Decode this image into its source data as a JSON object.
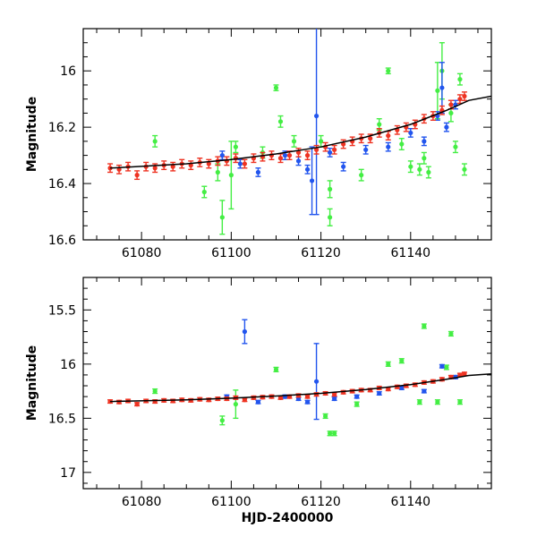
{
  "chart_data": [
    {
      "type": "scatter",
      "panel": "top",
      "xlabel": "",
      "ylabel": "Magnitude",
      "xlim": [
        61067,
        61158
      ],
      "ylim": [
        16.6,
        15.85
      ],
      "y_inverted": true,
      "xticks": [
        61080,
        61100,
        61120,
        61140
      ],
      "xtick_labels": [
        "61080",
        "61100",
        "61120",
        "61140"
      ],
      "yticks": [
        16,
        16.2,
        16.4,
        16.6
      ],
      "ytick_labels": [
        "16",
        "16.2",
        "16.4",
        "16.6"
      ],
      "fit_curve": {
        "color": "#000000",
        "x": [
          61073,
          61090,
          61100,
          61110,
          61120,
          61130,
          61140,
          61148,
          61153,
          61158
        ],
        "y": [
          16.345,
          16.33,
          16.315,
          16.295,
          16.27,
          16.235,
          16.19,
          16.14,
          16.105,
          16.09
        ]
      },
      "series": [
        {
          "name": "green",
          "color": "#44ee44",
          "x": [
            61083,
            61094,
            61097,
            61098,
            61100,
            61101,
            61107,
            61110,
            61111,
            61114,
            61120,
            61122,
            61122,
            61129,
            61133,
            61135,
            61138,
            61140,
            61142,
            61143,
            61144,
            61146,
            61147,
            61149,
            61150,
            61151,
            61152
          ],
          "y": [
            16.25,
            16.43,
            16.36,
            16.52,
            16.37,
            16.27,
            16.29,
            16.06,
            16.18,
            16.25,
            16.25,
            16.42,
            16.52,
            16.37,
            16.19,
            16.0,
            16.26,
            16.34,
            16.35,
            16.31,
            16.36,
            16.07,
            16.0,
            16.15,
            16.27,
            16.03,
            16.35
          ],
          "err": [
            0.02,
            0.02,
            0.03,
            0.06,
            0.12,
            0.02,
            0.02,
            0.01,
            0.02,
            0.02,
            0.02,
            0.03,
            0.03,
            0.02,
            0.02,
            0.01,
            0.02,
            0.02,
            0.02,
            0.02,
            0.02,
            0.1,
            0.1,
            0.03,
            0.02,
            0.02,
            0.02
          ]
        },
        {
          "name": "blue",
          "color": "#2255ee",
          "x": [
            61098,
            61102,
            61106,
            61112,
            61115,
            61117,
            61118,
            61119,
            61122,
            61125,
            61130,
            61135,
            61140,
            61143,
            61146,
            61147,
            61148,
            61150
          ],
          "y": [
            16.3,
            16.33,
            16.36,
            16.3,
            16.32,
            16.35,
            16.39,
            16.16,
            16.29,
            16.34,
            16.28,
            16.27,
            16.22,
            16.25,
            16.16,
            16.06,
            16.2,
            16.12
          ],
          "err": [
            0.015,
            0.015,
            0.015,
            0.015,
            0.015,
            0.015,
            0.12,
            0.35,
            0.015,
            0.015,
            0.015,
            0.015,
            0.015,
            0.015,
            0.015,
            0.09,
            0.015,
            0.015
          ]
        },
        {
          "name": "red",
          "color": "#ee3322",
          "x": [
            61073,
            61075,
            61077,
            61079,
            61081,
            61083,
            61085,
            61087,
            61089,
            61091,
            61093,
            61095,
            61097,
            61099,
            61101,
            61103,
            61105,
            61107,
            61109,
            61111,
            61113,
            61115,
            61117,
            61119,
            61121,
            61123,
            61125,
            61127,
            61129,
            61131,
            61133,
            61135,
            61137,
            61139,
            61141,
            61143,
            61145,
            61147,
            61149,
            61151,
            61152
          ],
          "y": [
            16.345,
            16.35,
            16.34,
            16.37,
            16.34,
            16.345,
            16.335,
            16.34,
            16.33,
            16.335,
            16.325,
            16.33,
            16.32,
            16.32,
            16.31,
            16.33,
            16.31,
            16.305,
            16.3,
            16.31,
            16.3,
            16.29,
            16.3,
            16.28,
            16.27,
            16.28,
            16.26,
            16.25,
            16.24,
            16.24,
            16.22,
            16.23,
            16.21,
            16.2,
            16.19,
            16.17,
            16.16,
            16.14,
            16.12,
            16.1,
            16.09
          ],
          "err": [
            0.015,
            0.015,
            0.015,
            0.015,
            0.015,
            0.015,
            0.015,
            0.015,
            0.015,
            0.015,
            0.015,
            0.015,
            0.015,
            0.015,
            0.015,
            0.015,
            0.015,
            0.015,
            0.015,
            0.015,
            0.015,
            0.015,
            0.015,
            0.015,
            0.015,
            0.015,
            0.015,
            0.015,
            0.015,
            0.015,
            0.015,
            0.015,
            0.015,
            0.015,
            0.015,
            0.015,
            0.015,
            0.015,
            0.015,
            0.015,
            0.015
          ]
        }
      ]
    },
    {
      "type": "scatter",
      "panel": "bottom",
      "xlabel": "HJD-2400000",
      "ylabel": "Magnitude",
      "xlim": [
        61067,
        61158
      ],
      "ylim": [
        17.15,
        15.2
      ],
      "y_inverted": true,
      "xticks": [
        61080,
        61100,
        61120,
        61140
      ],
      "xtick_labels": [
        "61080",
        "61100",
        "61120",
        "61140"
      ],
      "yticks": [
        15.5,
        16,
        16.5,
        17
      ],
      "ytick_labels": [
        "15.5",
        "16",
        "16.5",
        "17"
      ],
      "fit_curve": {
        "color": "#000000",
        "x": [
          61073,
          61090,
          61100,
          61110,
          61120,
          61130,
          61140,
          61148,
          61153,
          61158
        ],
        "y": [
          16.345,
          16.33,
          16.315,
          16.295,
          16.27,
          16.235,
          16.19,
          16.14,
          16.105,
          16.09
        ]
      },
      "series": [
        {
          "name": "green",
          "color": "#44ee44",
          "x": [
            61083,
            61098,
            61101,
            61110,
            61121,
            61122,
            61123,
            61128,
            61135,
            61138,
            61142,
            61143,
            61146,
            61148,
            61149,
            61151
          ],
          "y": [
            16.25,
            16.52,
            16.37,
            16.05,
            16.48,
            16.64,
            16.64,
            16.37,
            16.0,
            15.97,
            16.35,
            15.65,
            16.35,
            16.03,
            15.72,
            16.35
          ],
          "err": [
            0.02,
            0.04,
            0.13,
            0.02,
            0.02,
            0.02,
            0.02,
            0.02,
            0.02,
            0.02,
            0.02,
            0.02,
            0.02,
            0.02,
            0.02,
            0.02
          ]
        },
        {
          "name": "blue",
          "color": "#2255ee",
          "x": [
            61099,
            61103,
            61106,
            61112,
            61115,
            61117,
            61119,
            61123,
            61128,
            61133,
            61138,
            61143,
            61147,
            61150
          ],
          "y": [
            16.3,
            15.7,
            16.35,
            16.3,
            16.32,
            16.35,
            16.16,
            16.32,
            16.3,
            16.27,
            16.22,
            16.25,
            16.02,
            16.12
          ],
          "err": [
            0.015,
            0.11,
            0.015,
            0.015,
            0.015,
            0.015,
            0.35,
            0.015,
            0.015,
            0.015,
            0.015,
            0.015,
            0.015,
            0.015
          ]
        },
        {
          "name": "red",
          "color": "#ee3322",
          "x": [
            61073,
            61075,
            61077,
            61079,
            61081,
            61083,
            61085,
            61087,
            61089,
            61091,
            61093,
            61095,
            61097,
            61099,
            61101,
            61103,
            61105,
            61107,
            61109,
            61111,
            61113,
            61115,
            61117,
            61119,
            61121,
            61123,
            61125,
            61127,
            61129,
            61131,
            61133,
            61135,
            61137,
            61139,
            61141,
            61143,
            61145,
            61147,
            61149,
            61151,
            61152
          ],
          "y": [
            16.345,
            16.35,
            16.34,
            16.37,
            16.34,
            16.345,
            16.335,
            16.34,
            16.33,
            16.335,
            16.325,
            16.33,
            16.32,
            16.32,
            16.31,
            16.33,
            16.31,
            16.305,
            16.3,
            16.31,
            16.3,
            16.29,
            16.3,
            16.28,
            16.27,
            16.28,
            16.26,
            16.25,
            16.24,
            16.24,
            16.22,
            16.23,
            16.21,
            16.2,
            16.19,
            16.17,
            16.16,
            16.14,
            16.12,
            16.1,
            16.09
          ],
          "err": [
            0.015,
            0.015,
            0.015,
            0.015,
            0.015,
            0.015,
            0.015,
            0.015,
            0.015,
            0.015,
            0.015,
            0.015,
            0.015,
            0.015,
            0.015,
            0.015,
            0.015,
            0.015,
            0.015,
            0.015,
            0.015,
            0.015,
            0.015,
            0.015,
            0.015,
            0.015,
            0.015,
            0.015,
            0.015,
            0.015,
            0.015,
            0.015,
            0.015,
            0.015,
            0.015,
            0.015,
            0.015,
            0.015,
            0.015,
            0.015,
            0.015
          ]
        }
      ]
    }
  ]
}
